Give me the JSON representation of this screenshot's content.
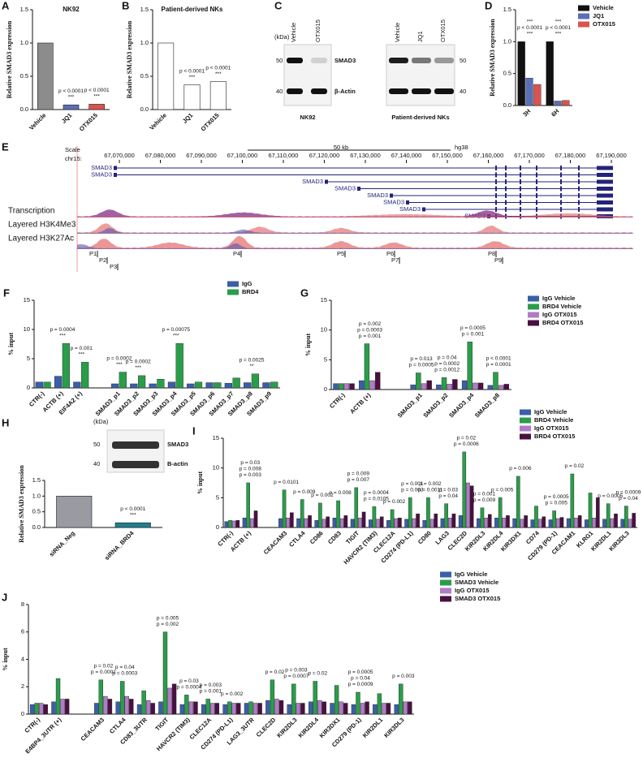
{
  "chart_data": [
    {
      "panel": "A",
      "type": "bar",
      "title": "NK92",
      "ylabel": "Relative SMAD3 expression",
      "categories": [
        "Vehicle",
        "JQ1",
        "OTX015"
      ],
      "values": [
        1.0,
        0.07,
        0.08
      ],
      "colors": [
        "#8c8c8c",
        "#5b6fb6",
        "#d9534f"
      ],
      "ylim": [
        0,
        1.5
      ],
      "yticks": [
        {
          "value": 0,
          "label": "0.0"
        },
        {
          "value": 0.5,
          "label": "0.5"
        },
        {
          "value": 1,
          "label": "1.0"
        },
        {
          "value": 1.5,
          "label": "1.5"
        }
      ],
      "annotations": [
        "***",
        "p < 0.0001",
        "***",
        "p < 0.0001"
      ]
    },
    {
      "panel": "B",
      "type": "bar",
      "title": "Patient-derived NKs",
      "ylabel": "Relative SMAD3 expression",
      "categories": [
        "Vehicle",
        "JQ1",
        "OTX015"
      ],
      "values": [
        1.0,
        0.37,
        0.42
      ],
      "colors": [
        "#ffffff",
        "#ffffff",
        "#ffffff"
      ],
      "ylim": [
        0,
        1.5
      ],
      "yticks": [
        {
          "value": 0,
          "label": "0.0"
        },
        {
          "value": 0.5,
          "label": "0.5"
        },
        {
          "value": 1,
          "label": "1.0"
        },
        {
          "value": 1.5,
          "label": "1.5"
        }
      ],
      "annotations": [
        "***",
        "p < 0.0001",
        "***",
        "p < 0.0001"
      ]
    },
    {
      "panel": "D",
      "type": "bar",
      "ylabel": "Relative SMAD3 expression",
      "categories": [
        "3H",
        "6H"
      ],
      "series": [
        {
          "name": "Vehicle",
          "color": "#111111",
          "values": [
            1.0,
            1.0
          ]
        },
        {
          "name": "JQ1",
          "color": "#5b6fb6",
          "values": [
            0.43,
            0.07
          ]
        },
        {
          "name": "OTX015",
          "color": "#d9534f",
          "values": [
            0.33,
            0.08
          ]
        }
      ],
      "ylim": [
        0,
        1.5
      ],
      "yticks": [
        {
          "value": 0,
          "label": "0.0"
        },
        {
          "value": 0.5,
          "label": "0.5"
        },
        {
          "value": 1,
          "label": "1.0"
        },
        {
          "value": 1.5,
          "label": "1.5"
        }
      ],
      "annotations": [
        "***",
        "p < 0.0001",
        "***",
        "***",
        "p < 0.0001",
        "***"
      ]
    },
    {
      "panel": "F",
      "type": "bar",
      "ylabel": "% input",
      "categories": [
        "CTR(-)",
        "ACTB (+)",
        "EIF4A2 (+)",
        null,
        "SMAD3_p1",
        "SMAD3_p2",
        "SMAD3_p3",
        "SMAD3_p4",
        "SMAD3_p5",
        "SMAD3_p6",
        "SMAD3_p7",
        "SMAD3_p8",
        "SMAD3_p9"
      ],
      "series": [
        {
          "name": "IgG",
          "color": "#3a5fa8",
          "values": [
            1.0,
            2.0,
            1.0,
            null,
            0.7,
            0.7,
            0.7,
            1.0,
            0.7,
            0.9,
            0.8,
            0.9,
            0.9
          ]
        },
        {
          "name": "BRD4",
          "color": "#2a9d4a",
          "values": [
            1.0,
            7.6,
            4.4,
            null,
            2.7,
            2.1,
            1.5,
            7.6,
            1.0,
            0.9,
            1.7,
            2.4,
            1.0
          ]
        }
      ],
      "ylim": [
        0,
        15
      ],
      "yticks": [
        0,
        5,
        10,
        15
      ],
      "annotations": [
        "***",
        "p = 0.0004",
        "***",
        "p = 0.001",
        "***",
        "p = 0.0002",
        "***",
        "p = 0.0002",
        "***",
        "p = 0.00075",
        "**",
        "p = 0.0025"
      ]
    },
    {
      "panel": "G",
      "type": "bar",
      "ylabel": "% input",
      "categories": [
        "CTR(-)",
        "ACTB (+)",
        null,
        "SMAD3_p1",
        "SMAD3_p2",
        "SMAD3_p4",
        "SMAD3_p8"
      ],
      "series": [
        {
          "name": "IgG Vehicle",
          "color": "#3a5fa8",
          "values": [
            1.0,
            1.5,
            null,
            0.8,
            0.8,
            1.5,
            0.7
          ]
        },
        {
          "name": "BRD4 Vehicle",
          "color": "#2a9d4a",
          "values": [
            1.0,
            7.7,
            null,
            2.8,
            2.0,
            8.0,
            2.9
          ]
        },
        {
          "name": "IgG OTX015",
          "color": "#b07cc6",
          "values": [
            1.0,
            1.5,
            null,
            1.0,
            0.9,
            1.1,
            0.7
          ]
        },
        {
          "name": "BRD4 OTX015",
          "color": "#4a1040",
          "values": [
            1.0,
            2.9,
            null,
            1.5,
            1.7,
            1.1,
            0.9
          ]
        }
      ],
      "ylim": [
        0,
        15
      ],
      "yticks": [
        0,
        5,
        10,
        15
      ],
      "annotations": [
        "p = 0.001",
        "p = 0.0003",
        "p = 0.002",
        "p = 0.0005",
        "p = 0.013",
        "p = 0.0012",
        "p = 0.0002",
        "p = 0.04",
        "p = 0.001",
        "p = 0.0005",
        "p = 0.0001",
        "p < 0.0001"
      ]
    },
    {
      "panel": "H",
      "type": "bar",
      "ylabel": "Relative SMAD3 expression",
      "categories": [
        "siRNA_Neg",
        "siRNA_BRD4"
      ],
      "values": [
        1.0,
        0.15
      ],
      "colors": [
        "#9a9aa2",
        "#1f7f8f"
      ],
      "ylim": [
        0,
        1.5
      ],
      "yticks": [
        {
          "value": 0,
          "label": "0.0"
        },
        {
          "value": 0.5,
          "label": "0.5"
        },
        {
          "value": 1,
          "label": "1.0"
        },
        {
          "value": 1.5,
          "label": "1.5"
        }
      ],
      "annotations": [
        "***",
        "p < 0.0001"
      ]
    },
    {
      "panel": "I",
      "type": "bar",
      "ylabel": "% input",
      "categories": [
        "CTR(-)",
        "ACTB (+)",
        null,
        "CEACAM3",
        "CTLA4",
        "CD86",
        "CD83",
        "TIGIT",
        "HAVCR2 (TIM3)",
        "CLEC12A",
        "CD274 (PD-L1)",
        "CD80",
        "LAG3",
        "CLEC2D",
        "KIR2DL3",
        "KIR2DL4",
        "KIR3DX1",
        "CD74",
        "CD279 (PD-1)",
        "CEACAM1",
        "KLRG1",
        "KIR2DL1",
        "KIR3DL3"
      ],
      "series": [
        {
          "name": "IgG Vehicle",
          "color": "#3a5fa8",
          "values": [
            1.0,
            1.6,
            null,
            1.5,
            1.5,
            1.2,
            1.6,
            1.4,
            1.3,
            1.2,
            1.4,
            1.2,
            1.5,
            2.0,
            1.5,
            1.6,
            1.5,
            1.3,
            1.3,
            1.5,
            1.3,
            1.4,
            1.4
          ]
        },
        {
          "name": "BRD4 Vehicle",
          "color": "#2a9d4a",
          "values": [
            1.2,
            7.5,
            null,
            6.3,
            4.7,
            4.1,
            4.5,
            6.7,
            3.5,
            3.0,
            5.0,
            5.0,
            4.0,
            12.7,
            3.3,
            5.0,
            8.6,
            3.6,
            2.8,
            9.0,
            5.8,
            4.0,
            3.6
          ]
        },
        {
          "name": "IgG OTX015",
          "color": "#b07cc6",
          "values": [
            1.1,
            1.5,
            null,
            1.6,
            1.5,
            1.4,
            1.5,
            1.6,
            1.4,
            1.5,
            1.5,
            1.4,
            1.6,
            7.5,
            1.6,
            1.6,
            1.4,
            1.4,
            1.5,
            1.6,
            1.6,
            1.5,
            1.4
          ]
        },
        {
          "name": "BRD4 OTX015",
          "color": "#4a1040",
          "values": [
            1.2,
            2.8,
            null,
            2.5,
            2.0,
            1.8,
            2.0,
            2.6,
            1.8,
            1.6,
            2.3,
            2.3,
            2.3,
            7.0,
            2.2,
            2.0,
            2.0,
            1.8,
            1.7,
            2.0,
            5.0,
            2.3,
            2.4
          ]
        }
      ],
      "ylim": [
        0,
        15
      ],
      "yticks": [
        0,
        5,
        10,
        15
      ],
      "annotations": [
        "p = 0.003",
        "p = 0.008",
        "p = 0.03",
        "p = 0.0101",
        "p = 0.009",
        "p = 0.002",
        "p = 0.008",
        "p = 0.007",
        "p = 0.009",
        "p = 0.0105",
        "p = 0.0004",
        "p = 0.002",
        "p = 0.003",
        "p = 0.001",
        "p = 0.0011",
        "p = 0.002",
        "p = 0.04",
        "p = 0.03",
        "p = 0.0006",
        "p = 0.02",
        "p = 0.009",
        "p = 0.001",
        "p = 0.005",
        "p = 0.006",
        "p = 0.005",
        "p = 0.0005",
        "p = 0.02",
        "p = 0.0005",
        "p = 0.04",
        "p = 0.0009"
      ]
    },
    {
      "panel": "J",
      "type": "bar",
      "ylabel": "% input",
      "categories": [
        "CTR(-)",
        "E4BP4_3UTR (+)",
        null,
        "CEACAM3",
        "CTLA4",
        "CD83_3UTR",
        "TIGIT",
        "HAVCR2 (TIM3)",
        "CLEC12A",
        "CD274 (PD-L1)",
        "LAG3_3UTR",
        "CLEC2D",
        "KIR2DL3",
        "KIR2DL4",
        "KIR3DX1",
        "CD279 (PD-1)",
        "KIR2DL1",
        "KIR3DL3"
      ],
      "series": [
        {
          "name": "IgG Vehicle",
          "color": "#3a5fa8",
          "values": [
            0.7,
            0.9,
            null,
            0.8,
            0.9,
            0.7,
            0.9,
            0.7,
            0.7,
            0.7,
            0.8,
            1.0,
            0.7,
            0.9,
            0.8,
            0.7,
            0.7,
            0.7
          ]
        },
        {
          "name": "SMAD3 Vehicle",
          "color": "#2a9d4a",
          "values": [
            0.8,
            2.6,
            null,
            2.5,
            2.4,
            1.7,
            6.0,
            1.4,
            1.1,
            0.9,
            0.9,
            2.5,
            2.2,
            2.4,
            2.1,
            1.6,
            1.5,
            2.2
          ]
        },
        {
          "name": "IgG OTX015",
          "color": "#b07cc6",
          "values": [
            0.8,
            1.1,
            null,
            1.3,
            1.3,
            1.0,
            1.9,
            0.9,
            0.8,
            0.8,
            0.8,
            1.1,
            0.8,
            1.0,
            0.9,
            0.8,
            0.8,
            0.9
          ]
        },
        {
          "name": "SMAD3 OTX015",
          "color": "#4a1040",
          "values": [
            0.7,
            1.1,
            null,
            1.1,
            1.1,
            0.8,
            2.2,
            0.9,
            0.8,
            0.8,
            0.8,
            1.0,
            0.8,
            0.9,
            0.8,
            0.9,
            0.8,
            0.9
          ]
        }
      ],
      "ylim": [
        0,
        8
      ],
      "yticks": [
        0,
        2,
        4,
        6,
        8
      ],
      "annotations": [
        "p = 0.0001",
        "p = 0.02",
        "p = 0.0003",
        "p = 0.04",
        "p = 0.002",
        "p = 0.005",
        "p = 0.0004",
        "p = 0.03",
        "p = 0.001",
        "p = 0.003",
        "p = 0.002",
        "p = 0.02",
        "p = 0.0007",
        "p = 0.003",
        "p = 0.02",
        "p = 0.0009",
        "p = 0.04",
        "p = 0.0005",
        "p = 0.003"
      ]
    }
  ],
  "blot_c": {
    "panel": "C",
    "kda": "(kDa)",
    "lanes_left": [
      "Vehicle",
      "OTX015"
    ],
    "lanes_right": [
      "Vehicle",
      "JQ1",
      "OTX015"
    ],
    "proteins": [
      "SMAD3",
      "β-Actin"
    ],
    "markers": [
      50,
      40
    ],
    "cells": [
      "NK92",
      "Patient-derived NKs"
    ]
  },
  "blot_h": {
    "kda": "(kDa)",
    "markers": [
      50,
      40
    ],
    "proteins": [
      "SMAD3",
      "B-actin"
    ]
  },
  "browser": {
    "panel": "E",
    "scale": "Scale",
    "chrom": "chr15:",
    "span": "50 kb",
    "assembly": "hg38",
    "coords": [
      "67,070,000",
      "67,080,000",
      "67,090,000",
      "67,100,000",
      "67,110,000",
      "67,120,000",
      "67,130,000",
      "67,140,000",
      "67,150,000",
      "67,160,000",
      "67,170,000",
      "67,180,000",
      "67,190,000"
    ],
    "transcripts": [
      "SMAD3",
      "SMAD3",
      "SMAD3",
      "SMAD3",
      "SMAD3",
      "SMAD3",
      "SMAD3",
      "SMAD3"
    ],
    "tracks": [
      "Transcription",
      "Layered H3K4Me3",
      "Layered H3K27Ac"
    ],
    "peaks": [
      "P1",
      "P2",
      "P3",
      "P4",
      "P5",
      "P6",
      "P7",
      "P8",
      "P9"
    ]
  }
}
